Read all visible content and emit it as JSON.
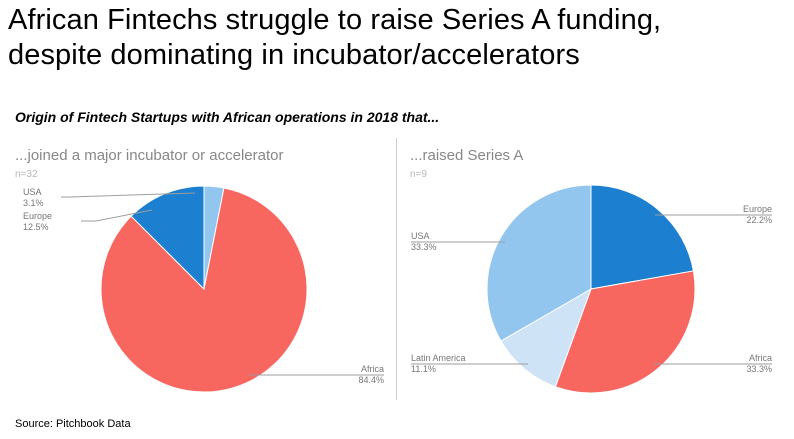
{
  "title": {
    "line1": "African Fintechs struggle to raise Series A funding,",
    "line2": "despite dominating in incubator/accelerators"
  },
  "subtitle": "Origin of Fintech Startups with African operations in 2018 that...",
  "source": "Source: Pitchbook Data",
  "colors": {
    "Africa": "#F86660",
    "Europe": "#1C7FD0",
    "USA": "#93C6EE",
    "Latin America": "#CFE3F7"
  },
  "chart_data": [
    {
      "type": "pie",
      "title": "...joined a major incubator or accelerator",
      "n_label": "n=32",
      "slices": [
        {
          "label": "USA",
          "value": 3.1,
          "value_label": "3.1%"
        },
        {
          "label": "Africa",
          "value": 84.4,
          "value_label": "84.4%"
        },
        {
          "label": "Europe",
          "value": 12.5,
          "value_label": "12.5%"
        }
      ]
    },
    {
      "type": "pie",
      "title": "...raised Series A",
      "n_label": "n=9",
      "slices": [
        {
          "label": "Europe",
          "value": 22.2,
          "value_label": "22.2%"
        },
        {
          "label": "Africa",
          "value": 33.3,
          "value_label": "33.3%"
        },
        {
          "label": "Latin America",
          "value": 11.1,
          "value_label": "11.1%"
        },
        {
          "label": "USA",
          "value": 33.3,
          "value_label": "33.3%"
        }
      ]
    }
  ]
}
